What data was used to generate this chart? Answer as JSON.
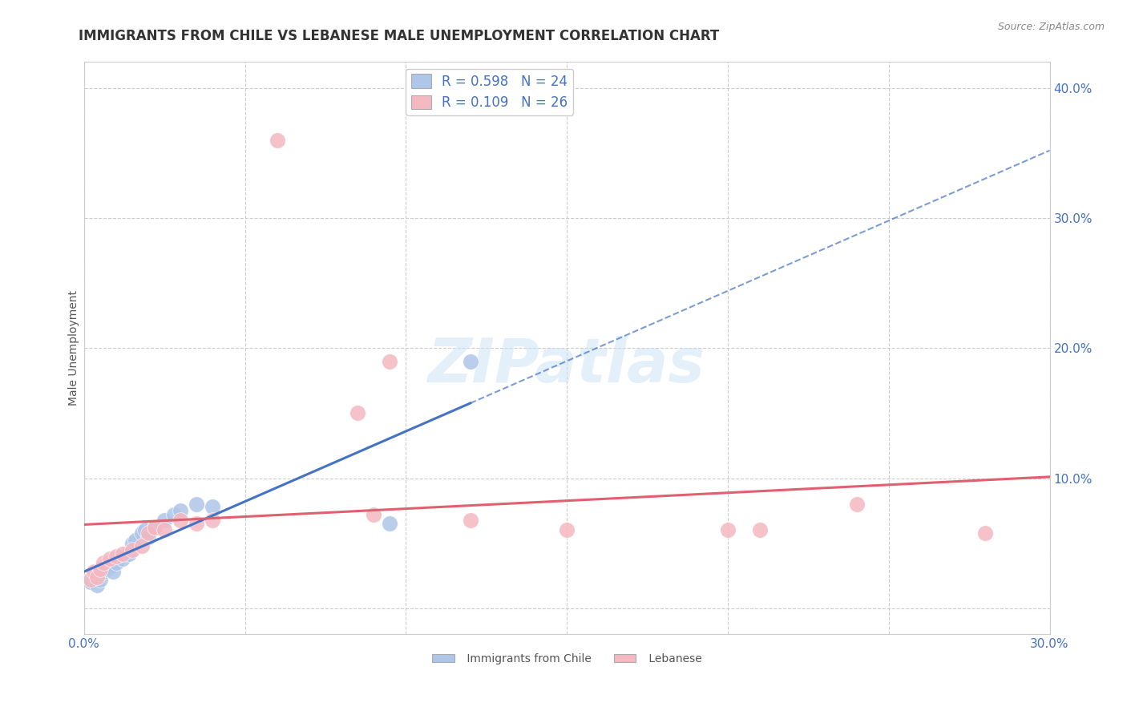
{
  "title": "IMMIGRANTS FROM CHILE VS LEBANESE MALE UNEMPLOYMENT CORRELATION CHART",
  "source": "Source: ZipAtlas.com",
  "ylabel": "Male Unemployment",
  "xlim": [
    0.0,
    0.3
  ],
  "ylim": [
    -0.02,
    0.42
  ],
  "xticks": [
    0.0,
    0.05,
    0.1,
    0.15,
    0.2,
    0.25,
    0.3
  ],
  "xtick_labels": [
    "0.0%",
    "",
    "",
    "",
    "",
    "",
    "30.0%"
  ],
  "yticks": [
    0.0,
    0.1,
    0.2,
    0.3,
    0.4
  ],
  "ytick_labels": [
    "",
    "10.0%",
    "20.0%",
    "30.0%",
    "40.0%"
  ],
  "background_color": "#ffffff",
  "grid_color": "#cccccc",
  "watermark": "ZIPatlas",
  "legend_r1": "R = 0.598",
  "legend_n1": "N = 24",
  "legend_r2": "R = 0.109",
  "legend_n2": "N = 26",
  "chile_color": "#aec6e8",
  "lebanese_color": "#f4b8c1",
  "chile_line_color": "#4472c4",
  "lebanese_line_color": "#e06070",
  "chile_scatter": [
    [
      0.002,
      0.02
    ],
    [
      0.003,
      0.025
    ],
    [
      0.004,
      0.018
    ],
    [
      0.005,
      0.022
    ],
    [
      0.006,
      0.028
    ],
    [
      0.007,
      0.03
    ],
    [
      0.008,
      0.032
    ],
    [
      0.009,
      0.028
    ],
    [
      0.01,
      0.035
    ],
    [
      0.012,
      0.038
    ],
    [
      0.014,
      0.042
    ],
    [
      0.015,
      0.05
    ],
    [
      0.016,
      0.052
    ],
    [
      0.018,
      0.058
    ],
    [
      0.019,
      0.06
    ],
    [
      0.02,
      0.055
    ],
    [
      0.022,
      0.062
    ],
    [
      0.025,
      0.068
    ],
    [
      0.028,
      0.072
    ],
    [
      0.03,
      0.075
    ],
    [
      0.035,
      0.08
    ],
    [
      0.04,
      0.078
    ],
    [
      0.12,
      0.19
    ],
    [
      0.095,
      0.065
    ]
  ],
  "lebanese_scatter": [
    [
      0.002,
      0.022
    ],
    [
      0.003,
      0.028
    ],
    [
      0.004,
      0.024
    ],
    [
      0.005,
      0.03
    ],
    [
      0.006,
      0.035
    ],
    [
      0.008,
      0.038
    ],
    [
      0.01,
      0.04
    ],
    [
      0.012,
      0.042
    ],
    [
      0.015,
      0.045
    ],
    [
      0.018,
      0.048
    ],
    [
      0.02,
      0.058
    ],
    [
      0.022,
      0.062
    ],
    [
      0.025,
      0.06
    ],
    [
      0.03,
      0.068
    ],
    [
      0.035,
      0.065
    ],
    [
      0.04,
      0.068
    ],
    [
      0.06,
      0.36
    ],
    [
      0.085,
      0.15
    ],
    [
      0.09,
      0.072
    ],
    [
      0.095,
      0.19
    ],
    [
      0.12,
      0.068
    ],
    [
      0.15,
      0.06
    ],
    [
      0.2,
      0.06
    ],
    [
      0.21,
      0.06
    ],
    [
      0.24,
      0.08
    ],
    [
      0.28,
      0.058
    ]
  ],
  "title_fontsize": 12,
  "axis_label_fontsize": 10,
  "tick_fontsize": 11,
  "legend_fontsize": 12
}
